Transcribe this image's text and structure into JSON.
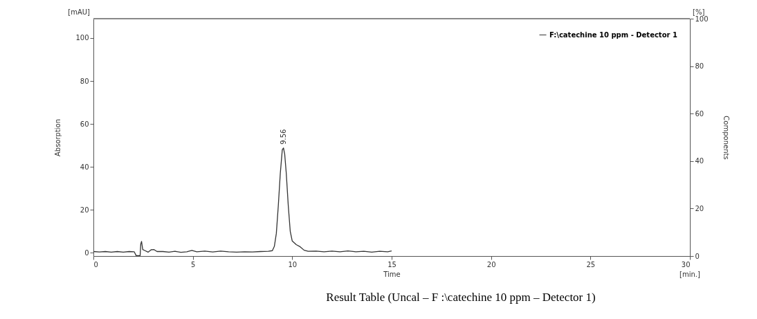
{
  "chart_data": {
    "type": "line",
    "xlabel": "Time",
    "ylabel": "Absorption",
    "y2label": "Components",
    "xlim": [
      0,
      30
    ],
    "xticks": [
      0,
      5,
      10,
      15,
      20,
      25,
      30
    ],
    "ylim": [
      -1.5,
      109
    ],
    "yticks": [
      0,
      20,
      40,
      60,
      80,
      100
    ],
    "y2lim": [
      0,
      100
    ],
    "y2ticks": [
      0,
      20,
      40,
      60,
      80,
      100
    ],
    "grid": false,
    "legend": "top right",
    "line_style": "solid",
    "marker": "none",
    "annotations": [
      "[mAU]",
      "[%]",
      "[min.]",
      "Result Table (Uncal – F :\\catechine 10 ppm – Detector 1)",
      {
        "text": "9.56",
        "x": 9.56,
        "y": 48.8
      }
    ],
    "series": [
      {
        "name": "F:\\catechine 10 ppm - Detector 1",
        "color": "#333333",
        "x": [
          0,
          0.3,
          0.6,
          0.9,
          1.2,
          1.5,
          1.8,
          2.05,
          2.15,
          2.35,
          2.38,
          2.42,
          2.48,
          2.6,
          2.75,
          2.9,
          3.05,
          3.2,
          3.5,
          3.8,
          4.1,
          4.4,
          4.7,
          4.95,
          5.2,
          5.6,
          6,
          6.4,
          6.8,
          7.2,
          7.6,
          8,
          8.4,
          8.8,
          9.0,
          9.1,
          9.2,
          9.3,
          9.4,
          9.5,
          9.56,
          9.62,
          9.7,
          9.8,
          9.9,
          10.0,
          10.2,
          10.4,
          10.6,
          10.8,
          11.2,
          11.6,
          12,
          12.4,
          12.8,
          13.2,
          13.6,
          14,
          14.4,
          14.8,
          15
        ],
        "values": [
          0.6,
          0.4,
          0.6,
          0.3,
          0.6,
          0.3,
          0.6,
          0.5,
          -1.3,
          -1.3,
          4,
          5.3,
          1.5,
          1,
          0.3,
          1.4,
          1.5,
          0.6,
          0.6,
          0.3,
          0.7,
          0.2,
          0.5,
          1.1,
          0.5,
          0.8,
          0.4,
          0.8,
          0.5,
          0.3,
          0.5,
          0.4,
          0.6,
          0.7,
          1,
          3,
          9,
          22,
          37,
          48,
          48.8,
          46,
          37,
          22,
          10,
          5.5,
          3.8,
          2.8,
          1.2,
          0.7,
          0.8,
          0.5,
          0.8,
          0.5,
          0.9,
          0.5,
          0.7,
          0.3,
          0.7,
          0.5,
          0.9
        ]
      }
    ]
  }
}
